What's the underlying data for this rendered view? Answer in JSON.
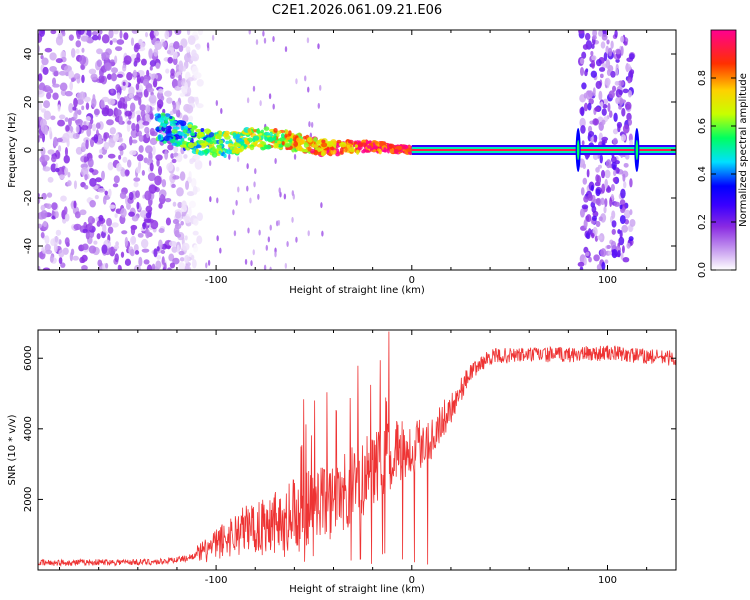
{
  "title": "C2E1.2026.061.09.21.E06",
  "chart_data": [
    {
      "type": "heatmap",
      "xlabel": "Height of straight line (km)",
      "ylabel": "Frequency (Hz)",
      "xlim": [
        -191,
        135
      ],
      "ylim": [
        -50,
        50
      ],
      "xticks": [
        -100,
        0,
        100
      ],
      "xtick_labels": [
        "-100",
        "0",
        "100"
      ],
      "yticks": [
        -40,
        -20,
        0,
        20,
        40
      ],
      "ytick_labels": [
        "-40",
        "-20",
        "0",
        "20",
        "40"
      ],
      "colorbar": {
        "label": "Normalized spectral amplitude",
        "range": [
          0,
          1
        ],
        "ticks": [
          0.0,
          0.2,
          0.4,
          0.6,
          0.8
        ],
        "tick_labels": [
          "0.0",
          "0.2",
          "0.4",
          "0.6",
          "0.8"
        ],
        "colormap": [
          "#ffffff",
          "#c9a0f0",
          "#8a2be2",
          "#3a00ff",
          "#0000ff",
          "#00e0ff",
          "#00ff60",
          "#c8ff00",
          "#ffd000",
          "#ff3000",
          "#ff0090"
        ]
      },
      "regions": [
        {
          "name": "low-altitude noise",
          "x": [
            -191,
            -108
          ],
          "y": [
            -50,
            50
          ],
          "amplitude": 0.15
        },
        {
          "name": "carrier wobble",
          "x": [
            -130,
            0
          ],
          "center_hz": [
            6,
            0
          ],
          "amplitude": 0.55
        },
        {
          "name": "steady carrier",
          "x": [
            0,
            135
          ],
          "center_hz": 0,
          "amplitude": 0.95
        },
        {
          "name": "occultation band",
          "x": [
            86,
            113
          ],
          "y": [
            -50,
            50
          ],
          "amplitude": 0.18
        }
      ]
    },
    {
      "type": "line",
      "xlabel": "Height of straight line (km)",
      "ylabel": "SNR (10 * v/v)",
      "xlim": [
        -191,
        135
      ],
      "ylim": [
        0,
        6800
      ],
      "xticks": [
        -100,
        0,
        100
      ],
      "xtick_labels": [
        "-100",
        "0",
        "100"
      ],
      "yticks": [
        2000,
        4000,
        6000
      ],
      "ytick_labels": [
        "2000",
        "4000",
        "6000"
      ],
      "color": "#ee3333",
      "series": [
        {
          "name": "SNR",
          "x": [
            -191,
            -160,
            -130,
            -115,
            -105,
            -95,
            -80,
            -60,
            -45,
            -30,
            -15,
            0,
            10,
            20,
            30,
            40,
            60,
            80,
            100,
            120,
            135
          ],
          "values": [
            200,
            220,
            230,
            330,
            550,
            900,
            1300,
            1550,
            1900,
            2400,
            3100,
            3500,
            3750,
            4600,
            5600,
            6050,
            6100,
            6100,
            6150,
            6050,
            6000
          ]
        }
      ]
    }
  ]
}
